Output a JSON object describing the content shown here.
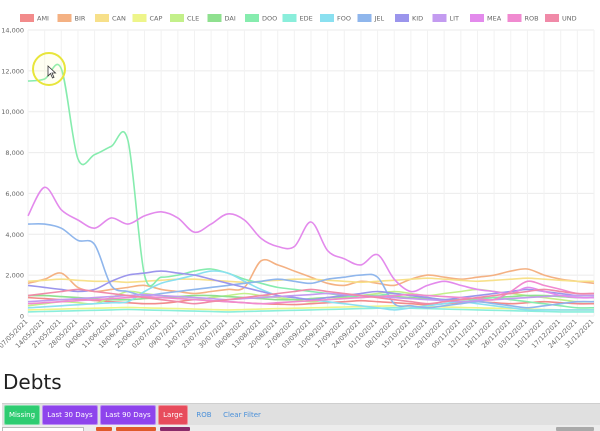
{
  "chart_data": {
    "type": "line",
    "y_ticks": [
      "14,000",
      "12,000",
      "10,000",
      "8,000",
      "6,000",
      "4,000",
      "2,000",
      "0"
    ],
    "ylim": [
      0,
      14000
    ],
    "categories": [
      "07/05/2021",
      "14/05/2021",
      "21/05/2021",
      "28/05/2021",
      "04/06/2021",
      "11/06/2021",
      "18/06/2021",
      "25/06/2021",
      "02/07/2021",
      "09/07/2021",
      "16/07/2021",
      "23/07/2021",
      "30/07/2021",
      "06/08/2021",
      "13/08/2021",
      "20/08/2021",
      "27/08/2021",
      "03/09/2021",
      "10/09/2021",
      "17/09/2021",
      "24/09/2021",
      "01/10/2021",
      "08/10/2021",
      "15/10/2021",
      "22/10/2021",
      "29/10/2021",
      "05/11/2021",
      "12/11/2021",
      "19/11/2021",
      "26/11/2021",
      "03/12/2021",
      "10/12/2021",
      "17/12/2021",
      "24/12/2021",
      "31/12/2021"
    ],
    "legend_position": "top",
    "grid": true,
    "series": [
      {
        "name": "AMI",
        "color": "#f28b8b",
        "values": [
          900,
          850,
          800,
          820,
          760,
          700,
          650,
          600,
          620,
          700,
          800,
          750,
          700,
          650,
          600,
          580,
          560,
          600,
          650,
          700,
          750,
          700,
          650,
          600,
          550,
          600,
          650,
          700,
          650,
          600,
          650,
          700,
          650,
          600,
          600
        ]
      },
      {
        "name": "BIR",
        "color": "#f4b183",
        "values": [
          1600,
          1800,
          2100,
          1400,
          1200,
          1300,
          1400,
          1500,
          1300,
          1200,
          1100,
          1200,
          1300,
          1400,
          2700,
          2500,
          2200,
          1900,
          1600,
          1500,
          1700,
          1600,
          1500,
          1800,
          2000,
          1900,
          1800,
          1900,
          2000,
          2200,
          2300,
          2000,
          1800,
          1700,
          1600
        ]
      },
      {
        "name": "CAN",
        "color": "#f7e08a",
        "values": [
          1700,
          1750,
          1800,
          1750,
          1700,
          1700,
          1650,
          1700,
          1750,
          1800,
          1800,
          1750,
          1700,
          1650,
          1700,
          1750,
          1800,
          1800,
          1750,
          1700,
          1650,
          1700,
          1750,
          1800,
          1850,
          1800,
          1750,
          1700,
          1750,
          1800,
          1850,
          1800,
          1750,
          1700,
          1700
        ]
      },
      {
        "name": "CAP",
        "color": "#eef58a",
        "values": [
          300,
          320,
          340,
          360,
          380,
          400,
          420,
          400,
          380,
          360,
          340,
          320,
          300,
          320,
          340,
          360,
          380,
          400,
          420,
          440,
          460,
          480,
          500,
          480,
          460,
          440,
          420,
          400,
          380,
          360,
          340,
          320,
          300,
          300,
          300
        ]
      },
      {
        "name": "CLE",
        "color": "#c3f08a",
        "values": [
          500,
          600,
          700,
          650,
          600,
          900,
          1200,
          1100,
          1000,
          900,
          800,
          900,
          1000,
          1100,
          1000,
          900,
          800,
          700,
          800,
          900,
          1000,
          1100,
          1200,
          1100,
          1000,
          1100,
          1200,
          1300,
          1200,
          1100,
          1000,
          900,
          800,
          700,
          700
        ]
      },
      {
        "name": "DAI",
        "color": "#8fe08f",
        "values": [
          1000,
          1000,
          950,
          900,
          850,
          800,
          800,
          850,
          900,
          950,
          1000,
          1000,
          950,
          900,
          850,
          800,
          800,
          850,
          900,
          950,
          1000,
          1000,
          950,
          900,
          850,
          800,
          800,
          850,
          900,
          950,
          1000,
          1000,
          950,
          900,
          900
        ]
      },
      {
        "name": "DOO",
        "color": "#86ecae",
        "values": [
          11500,
          11600,
          12100,
          7700,
          7900,
          8300,
          8600,
          2000,
          1900,
          2000,
          2200,
          2300,
          2100,
          1800,
          1600,
          1400,
          1300,
          1200,
          1100,
          1000,
          900,
          1000,
          1100,
          1000,
          900,
          800,
          700,
          800,
          900,
          800,
          700,
          600,
          500,
          400,
          400
        ]
      },
      {
        "name": "EDE",
        "color": "#8aeedb",
        "values": [
          200,
          220,
          240,
          260,
          280,
          300,
          320,
          300,
          280,
          260,
          240,
          220,
          200,
          220,
          240,
          260,
          280,
          300,
          320,
          340,
          360,
          380,
          400,
          380,
          360,
          340,
          320,
          300,
          280,
          260,
          240,
          220,
          200,
          200,
          200
        ]
      },
      {
        "name": "FOO",
        "color": "#8ae0f0",
        "values": [
          400,
          450,
          500,
          550,
          600,
          650,
          700,
          1200,
          1600,
          1800,
          2000,
          2200,
          2100,
          1700,
          1300,
          1000,
          900,
          800,
          700,
          600,
          500,
          400,
          300,
          400,
          500,
          600,
          700,
          600,
          500,
          400,
          300,
          300,
          300,
          300,
          300
        ]
      },
      {
        "name": "JEL",
        "color": "#8fb6ec",
        "values": [
          4500,
          4500,
          4300,
          3700,
          3500,
          1500,
          1200,
          1000,
          1100,
          1200,
          1300,
          1400,
          1500,
          1600,
          1700,
          1800,
          1700,
          1600,
          1800,
          1900,
          2000,
          1900,
          600,
          500,
          400,
          500,
          600,
          700,
          600,
          500,
          400,
          500,
          600,
          700,
          700
        ]
      },
      {
        "name": "KID",
        "color": "#9b95ec",
        "values": [
          1500,
          1400,
          1300,
          1200,
          1300,
          1700,
          2000,
          2100,
          2200,
          2100,
          2000,
          1800,
          1600,
          1400,
          1200,
          1000,
          900,
          800,
          900,
          1000,
          1100,
          1200,
          1100,
          1000,
          900,
          800,
          900,
          1000,
          1100,
          1200,
          1300,
          1200,
          1100,
          1000,
          1000
        ]
      },
      {
        "name": "LIT",
        "color": "#c39bf0",
        "values": [
          700,
          750,
          800,
          850,
          900,
          950,
          1000,
          1050,
          1000,
          950,
          900,
          850,
          800,
          850,
          900,
          950,
          1000,
          1050,
          1100,
          1050,
          1000,
          950,
          900,
          850,
          800,
          750,
          700,
          750,
          800,
          850,
          900,
          950,
          1000,
          1000,
          1000
        ]
      },
      {
        "name": "MEA",
        "color": "#e38aec",
        "values": [
          4900,
          6300,
          5200,
          4700,
          4300,
          4800,
          4500,
          4900,
          5100,
          4800,
          4100,
          4500,
          5000,
          4700,
          3800,
          3400,
          3400,
          4600,
          3200,
          2800,
          2500,
          3000,
          1800,
          1200,
          1500,
          1700,
          1500,
          1300,
          1200,
          1100,
          1400,
          1200,
          1000,
          900,
          900
        ]
      },
      {
        "name": "ROB",
        "color": "#f08ad0",
        "values": [
          600,
          650,
          700,
          750,
          800,
          850,
          900,
          950,
          900,
          850,
          800,
          750,
          700,
          650,
          600,
          650,
          700,
          750,
          800,
          850,
          900,
          950,
          1000,
          1050,
          1000,
          950,
          900,
          850,
          800,
          1200,
          1700,
          1500,
          1300,
          1100,
          1100
        ]
      },
      {
        "name": "UND",
        "color": "#f08aa8",
        "values": [
          1000,
          1100,
          1200,
          1300,
          1200,
          1100,
          1000,
          900,
          800,
          700,
          600,
          700,
          800,
          900,
          1000,
          1100,
          1200,
          1300,
          1200,
          1100,
          1000,
          900,
          800,
          700,
          600,
          700,
          800,
          900,
          1000,
          1100,
          1200,
          1300,
          1200,
          1100,
          1100
        ]
      }
    ]
  },
  "section": {
    "title": "Debts"
  },
  "filters": [
    {
      "label": "Missing",
      "color": "#2ecc71"
    },
    {
      "label": "Last 30 Days",
      "color": "#8e44ec"
    },
    {
      "label": "Last 90 Days",
      "color": "#8e44ec"
    },
    {
      "label": "Large",
      "color": "#e74c5c"
    },
    {
      "label": "ROB",
      "color": ""
    },
    {
      "label": "Clear Filter",
      "color": ""
    }
  ]
}
